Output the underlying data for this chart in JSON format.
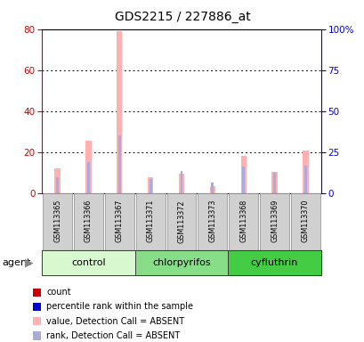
{
  "title": "GDS2215 / 227886_at",
  "samples": [
    "GSM113365",
    "GSM113366",
    "GSM113367",
    "GSM113371",
    "GSM113372",
    "GSM113373",
    "GSM113368",
    "GSM113369",
    "GSM113370"
  ],
  "groups": [
    {
      "label": "control",
      "start": 0,
      "end": 3,
      "color": "#d8f8d0"
    },
    {
      "label": "chlorpyrifos",
      "start": 3,
      "end": 6,
      "color": "#88dd88"
    },
    {
      "label": "cyfluthrin",
      "start": 6,
      "end": 9,
      "color": "#44cc44"
    }
  ],
  "value_absent": [
    12.0,
    25.5,
    79.0,
    8.0,
    9.5,
    3.5,
    18.0,
    10.5,
    21.0
  ],
  "rank_absent": [
    10.0,
    19.0,
    35.5,
    8.5,
    13.5,
    6.5,
    16.5,
    12.5,
    17.0
  ],
  "ylim_left": [
    0,
    80
  ],
  "ylim_right": [
    0,
    100
  ],
  "yticks_left": [
    0,
    20,
    40,
    60,
    80
  ],
  "yticks_right": [
    0,
    25,
    50,
    75,
    100
  ],
  "left_axis_color": "#cc0000",
  "right_axis_color": "#0000cc",
  "bg_color": "#ffffff",
  "bar_color_absent_value": "#ffb0b0",
  "bar_color_absent_rank": "#aaaadd",
  "legend_items": [
    {
      "color": "#cc0000",
      "label": "count"
    },
    {
      "color": "#0000cc",
      "label": "percentile rank within the sample"
    },
    {
      "color": "#ffb0b0",
      "label": "value, Detection Call = ABSENT"
    },
    {
      "color": "#aaaadd",
      "label": "rank, Detection Call = ABSENT"
    }
  ]
}
